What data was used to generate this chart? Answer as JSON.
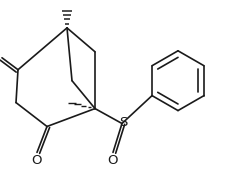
{
  "background": "#ffffff",
  "line_color": "#1a1a1a",
  "line_width": 1.2,
  "fig_width": 2.34,
  "fig_height": 1.71,
  "dpi": 100,
  "xlim": [
    0,
    234
  ],
  "ylim": [
    0,
    171
  ]
}
